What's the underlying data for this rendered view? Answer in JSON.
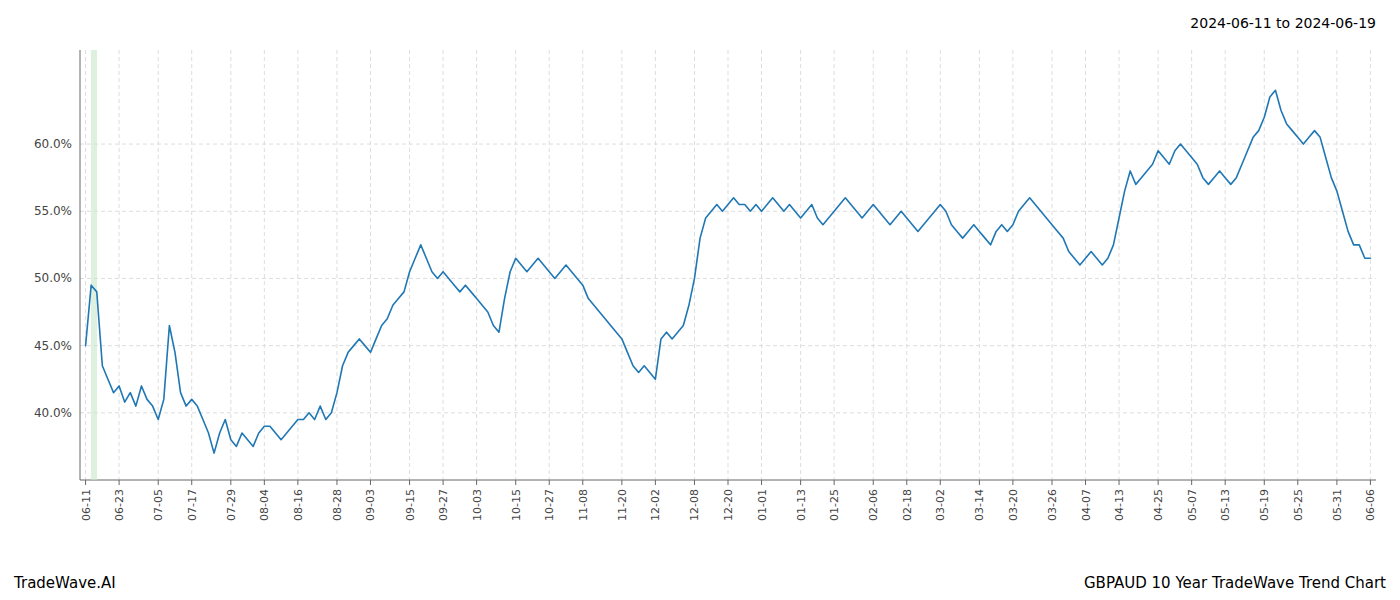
{
  "chart_data": {
    "type": "line",
    "title": "2024-06-11 to 2024-06-19",
    "annotations": [
      "TradeWave.AI",
      "GBPAUD 10 Year TradeWave Trend Chart"
    ],
    "color": "#1f77b4",
    "grid": true,
    "ylim": [
      35.0,
      67.0
    ],
    "yticks": [
      {
        "value": 40.0,
        "label": "40.0%"
      },
      {
        "value": 45.0,
        "label": "45.0%"
      },
      {
        "value": 50.0,
        "label": "50.0%"
      },
      {
        "value": 55.0,
        "label": "55.0%"
      },
      {
        "value": 60.0,
        "label": "60.0%"
      }
    ],
    "span": {
      "x": [
        0.95,
        2.05
      ],
      "color": "#c8e6c9"
    },
    "categories": [
      "06-11",
      null,
      null,
      null,
      null,
      null,
      "06-23",
      null,
      null,
      null,
      null,
      null,
      null,
      "07-05",
      null,
      null,
      null,
      null,
      null,
      "07-17",
      null,
      null,
      null,
      null,
      null,
      null,
      "07-29",
      null,
      null,
      null,
      null,
      null,
      "08-04",
      null,
      null,
      null,
      null,
      null,
      "08-16",
      null,
      null,
      null,
      null,
      null,
      null,
      "08-28",
      null,
      null,
      null,
      null,
      null,
      "09-03",
      null,
      null,
      null,
      null,
      null,
      null,
      "09-15",
      null,
      null,
      null,
      null,
      null,
      "09-27",
      null,
      null,
      null,
      null,
      null,
      "10-03",
      null,
      null,
      null,
      null,
      null,
      null,
      "10-15",
      null,
      null,
      null,
      null,
      null,
      "10-27",
      null,
      null,
      null,
      null,
      null,
      "11-08",
      null,
      null,
      null,
      null,
      null,
      null,
      "11-20",
      null,
      null,
      null,
      null,
      null,
      "12-02",
      null,
      null,
      null,
      null,
      null,
      null,
      "12-08",
      null,
      null,
      null,
      null,
      null,
      "12-20",
      null,
      null,
      null,
      null,
      null,
      "01-01",
      null,
      null,
      null,
      null,
      null,
      null,
      "01-13",
      null,
      null,
      null,
      null,
      null,
      "01-25",
      null,
      null,
      null,
      null,
      null,
      null,
      "02-06",
      null,
      null,
      null,
      null,
      null,
      "02-18",
      null,
      null,
      null,
      null,
      null,
      "03-02",
      null,
      null,
      null,
      null,
      null,
      null,
      "03-14",
      null,
      null,
      null,
      null,
      null,
      "03-20",
      null,
      null,
      null,
      null,
      null,
      null,
      "03-26",
      null,
      null,
      null,
      null,
      null,
      "04-07",
      null,
      null,
      null,
      null,
      null,
      "04-13",
      null,
      null,
      null,
      null,
      null,
      null,
      "04-25",
      null,
      null,
      null,
      null,
      null,
      "05-07",
      null,
      null,
      null,
      null,
      null,
      "05-13",
      null,
      null,
      null,
      null,
      null,
      null,
      "05-19",
      null,
      null,
      null,
      null,
      null,
      "05-25",
      null,
      null,
      null,
      null,
      null,
      null,
      "05-31",
      null,
      null,
      null,
      null,
      null,
      "06-06"
    ],
    "values": [
      45.0,
      49.5,
      49.0,
      43.5,
      42.5,
      41.5,
      42.0,
      40.8,
      41.5,
      40.5,
      42.0,
      41.0,
      40.5,
      39.5,
      41.0,
      46.5,
      44.5,
      41.5,
      40.5,
      41.0,
      40.5,
      39.5,
      38.5,
      37.0,
      38.5,
      39.5,
      38.0,
      37.5,
      38.5,
      38.0,
      37.5,
      38.5,
      39.0,
      39.0,
      38.5,
      38.0,
      38.5,
      39.0,
      39.5,
      39.5,
      40.0,
      39.5,
      40.5,
      39.5,
      40.0,
      41.5,
      43.5,
      44.5,
      45.0,
      45.5,
      45.0,
      44.5,
      45.5,
      46.5,
      47.0,
      48.0,
      48.5,
      49.0,
      50.5,
      51.5,
      52.5,
      51.5,
      50.5,
      50.0,
      50.5,
      50.0,
      49.5,
      49.0,
      49.5,
      49.0,
      48.5,
      48.0,
      47.5,
      46.5,
      46.0,
      48.5,
      50.5,
      51.5,
      51.0,
      50.5,
      51.0,
      51.5,
      51.0,
      50.5,
      50.0,
      50.5,
      51.0,
      50.5,
      50.0,
      49.5,
      48.5,
      48.0,
      47.5,
      47.0,
      46.5,
      46.0,
      45.5,
      44.5,
      43.5,
      43.0,
      43.5,
      43.0,
      42.5,
      45.5,
      46.0,
      45.5,
      46.0,
      46.5,
      48.0,
      50.0,
      53.0,
      54.5,
      55.0,
      55.5,
      55.0,
      55.5,
      56.0,
      55.5,
      55.5,
      55.0,
      55.5,
      55.0,
      55.5,
      56.0,
      55.5,
      55.0,
      55.5,
      55.0,
      54.5,
      55.0,
      55.5,
      54.5,
      54.0,
      54.5,
      55.0,
      55.5,
      56.0,
      55.5,
      55.0,
      54.5,
      55.0,
      55.5,
      55.0,
      54.5,
      54.0,
      54.5,
      55.0,
      54.5,
      54.0,
      53.5,
      54.0,
      54.5,
      55.0,
      55.5,
      55.0,
      54.0,
      53.5,
      53.0,
      53.5,
      54.0,
      53.5,
      53.0,
      52.5,
      53.5,
      54.0,
      53.5,
      54.0,
      55.0,
      55.5,
      56.0,
      55.5,
      55.0,
      54.5,
      54.0,
      53.5,
      53.0,
      52.0,
      51.5,
      51.0,
      51.5,
      52.0,
      51.5,
      51.0,
      51.5,
      52.5,
      54.5,
      56.5,
      58.0,
      57.0,
      57.5,
      58.0,
      58.5,
      59.5,
      59.0,
      58.5,
      59.5,
      60.0,
      59.5,
      59.0,
      58.5,
      57.5,
      57.0,
      57.5,
      58.0,
      57.5,
      57.0,
      57.5,
      58.5,
      59.5,
      60.5,
      61.0,
      62.0,
      63.5,
      64.0,
      62.5,
      61.5,
      61.0,
      60.5,
      60.0,
      60.5,
      61.0,
      60.5,
      59.0,
      57.5,
      56.5,
      55.0,
      53.5,
      52.5,
      52.5,
      51.5,
      51.5
    ]
  }
}
